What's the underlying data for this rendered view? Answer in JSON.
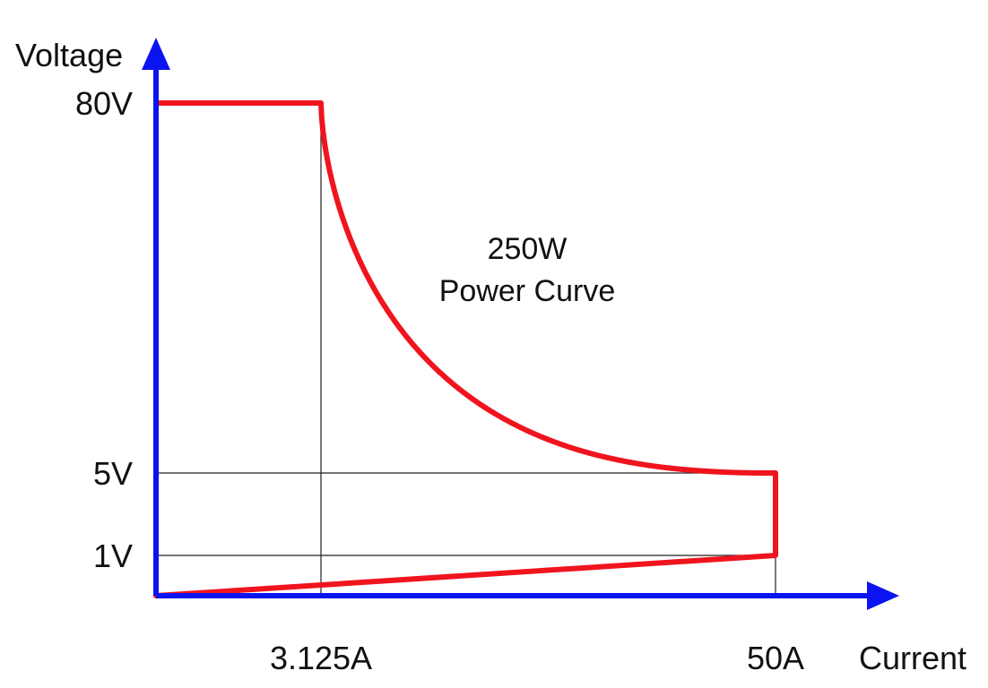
{
  "chart_data": {
    "type": "line",
    "xlabel": "Current",
    "ylabel": "Voltage",
    "x_ticks": [
      {
        "value": 3.125,
        "label": "3.125A"
      },
      {
        "value": 50,
        "label": "50A"
      }
    ],
    "y_ticks": [
      {
        "value": 80,
        "label": "80V"
      },
      {
        "value": 5,
        "label": "5V"
      },
      {
        "value": 1,
        "label": "1V"
      }
    ],
    "annotation": [
      "250W",
      "Power Curve"
    ],
    "power_watts": 250,
    "boundary_points": [
      {
        "x": 0,
        "y": 80
      },
      {
        "x": 3.125,
        "y": 80
      },
      {
        "x": 50,
        "y": 5
      },
      {
        "x": 50,
        "y": 1
      },
      {
        "x": 0,
        "y": 0
      }
    ],
    "colors": {
      "axis": "#0b14f0",
      "curve": "#f0141e",
      "guide": "#222222"
    }
  }
}
